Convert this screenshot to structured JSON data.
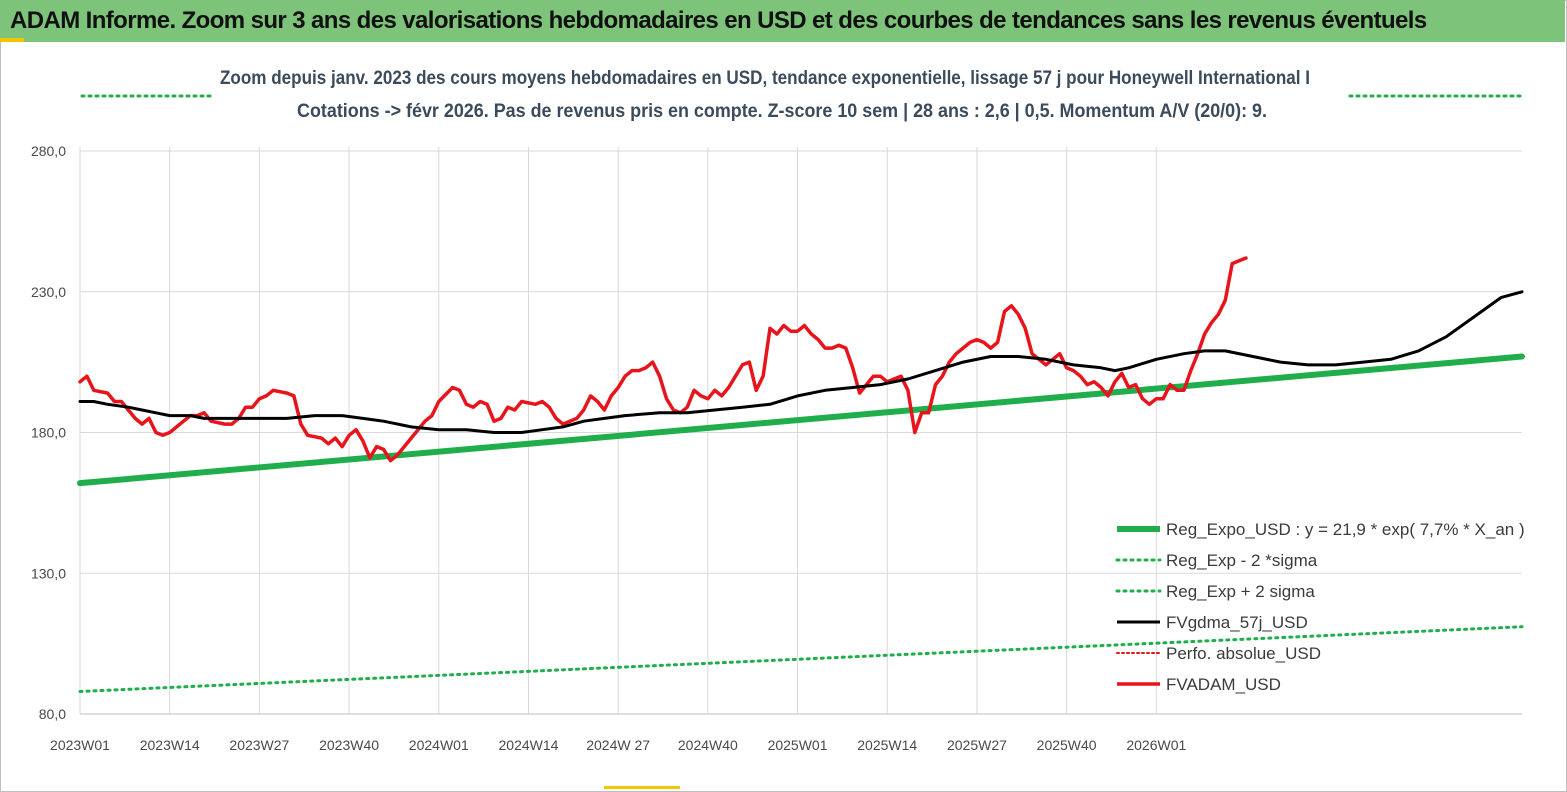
{
  "banner": {
    "title": "ADAM Informe. Zoom sur 3 ans des valorisations hebdomadaires en USD et des courbes de tendances sans les revenus éventuels"
  },
  "colors": {
    "banner_bg": "#7dc47a",
    "accent": "#f2c500",
    "reg_expo": "#1fae4b",
    "fvgdma": "#000000",
    "fvadam": "#e8141b",
    "perfo": "#e8141b"
  },
  "chart_data": {
    "type": "line",
    "title_line1": "Zoom depuis janv. 2023 des cours moyens hebdomadaires en USD, tendance exponentielle, lissage 57 j pour Honeywell International I",
    "title_line2": "Cotations -> févr 2026. Pas de revenus pris en compte. Z-score 10 sem | 28 ans : 2,6 | 0,5. Momentum A/V (20/0): 9.",
    "ylim": [
      80,
      280
    ],
    "yticks": [
      "280,0",
      "230,0",
      "180,0",
      "130,0",
      "80,0"
    ],
    "ytick_values": [
      280,
      230,
      180,
      130,
      80
    ],
    "xticks": [
      "2023W01",
      "2023W14",
      "2023W27",
      "2023W40",
      "2024W01",
      "2024W14",
      "2024W 27",
      "2024W40",
      "2025W01",
      "2025W14",
      "2025W27",
      "2025W40",
      "2026W01"
    ],
    "xlim_weeks": [
      0,
      165
    ],
    "grid": true,
    "legend_position": "bottom-right",
    "series": [
      {
        "name": "Reg_Expo_USD : y = 21,9 * exp( 7,7% *  X_an )",
        "style": "solid-thick",
        "start": [
          0,
          162
        ],
        "end": [
          165,
          207
        ]
      },
      {
        "name": "Reg_Exp - 2 *sigma",
        "style": "dotted",
        "start": [
          0,
          88
        ],
        "end": [
          165,
          111
        ]
      },
      {
        "name": "Reg_Exp + 2 sigma",
        "style": "dotted",
        "start": [
          0,
          301
        ],
        "end": [
          165,
          301
        ],
        "note_offscale": true
      },
      {
        "name": "FVgdma_57j_USD",
        "style": "solid",
        "points": [
          [
            0,
            191
          ],
          [
            2,
            191
          ],
          [
            4,
            190
          ],
          [
            7,
            189
          ],
          [
            9,
            188
          ],
          [
            11,
            187
          ],
          [
            13,
            186
          ],
          [
            16,
            186
          ],
          [
            18,
            185
          ],
          [
            22,
            185
          ],
          [
            26,
            185
          ],
          [
            30,
            185
          ],
          [
            34,
            186
          ],
          [
            38,
            186
          ],
          [
            41,
            185
          ],
          [
            44,
            184
          ],
          [
            48,
            182
          ],
          [
            52,
            181
          ],
          [
            56,
            181
          ],
          [
            60,
            180
          ],
          [
            64,
            180
          ],
          [
            67,
            181
          ],
          [
            70,
            182
          ],
          [
            73,
            184
          ],
          [
            76,
            185
          ],
          [
            79,
            186
          ],
          [
            84,
            187
          ],
          [
            88,
            187
          ],
          [
            92,
            188
          ],
          [
            96,
            189
          ],
          [
            100,
            190
          ],
          [
            104,
            193
          ],
          [
            108,
            195
          ],
          [
            112,
            196
          ],
          [
            116,
            197
          ],
          [
            120,
            199
          ],
          [
            124,
            202
          ],
          [
            128,
            205
          ],
          [
            132,
            207
          ],
          [
            136,
            207
          ],
          [
            140,
            206
          ],
          [
            144,
            204
          ],
          [
            148,
            203
          ],
          [
            150,
            202
          ],
          [
            152,
            203
          ],
          [
            156,
            206
          ],
          [
            160,
            208
          ],
          [
            163,
            209
          ],
          [
            166,
            209
          ],
          [
            170,
            207
          ],
          [
            174,
            205
          ],
          [
            178,
            204
          ],
          [
            182,
            204
          ],
          [
            186,
            205
          ],
          [
            190,
            206
          ],
          [
            194,
            209
          ],
          [
            198,
            214
          ],
          [
            202,
            221
          ],
          [
            206,
            228
          ],
          [
            209,
            230
          ]
        ]
      },
      {
        "name": "Perfo. absolue_USD",
        "style": "dotted",
        "offscale": true
      },
      {
        "name": "FVADAM_USD",
        "style": "solid-thick",
        "points": [
          [
            0,
            198
          ],
          [
            1,
            200
          ],
          [
            2,
            195
          ],
          [
            4,
            194
          ],
          [
            5,
            191
          ],
          [
            6,
            191
          ],
          [
            7,
            188
          ],
          [
            8,
            185
          ],
          [
            9,
            183
          ],
          [
            10,
            185
          ],
          [
            11,
            180
          ],
          [
            12,
            179
          ],
          [
            13,
            180
          ],
          [
            14,
            182
          ],
          [
            15,
            184
          ],
          [
            16,
            186
          ],
          [
            17,
            186
          ],
          [
            18,
            187
          ],
          [
            19,
            184
          ],
          [
            21,
            183
          ],
          [
            22,
            183
          ],
          [
            23,
            185
          ],
          [
            24,
            189
          ],
          [
            25,
            189
          ],
          [
            26,
            192
          ],
          [
            27,
            193
          ],
          [
            28,
            195
          ],
          [
            30,
            194
          ],
          [
            31,
            193
          ],
          [
            32,
            183
          ],
          [
            33,
            179
          ],
          [
            35,
            178
          ],
          [
            36,
            176
          ],
          [
            37,
            178
          ],
          [
            38,
            175
          ],
          [
            39,
            179
          ],
          [
            40,
            181
          ],
          [
            41,
            177
          ],
          [
            42,
            171
          ],
          [
            43,
            175
          ],
          [
            44,
            174
          ],
          [
            45,
            170
          ],
          [
            46,
            172
          ],
          [
            47,
            175
          ],
          [
            48,
            178
          ],
          [
            49,
            181
          ],
          [
            50,
            184
          ],
          [
            51,
            186
          ],
          [
            52,
            191
          ],
          [
            54,
            196
          ],
          [
            55,
            195
          ],
          [
            56,
            190
          ],
          [
            57,
            189
          ],
          [
            58,
            191
          ],
          [
            59,
            190
          ],
          [
            60,
            184
          ],
          [
            61,
            185
          ],
          [
            62,
            189
          ],
          [
            63,
            188
          ],
          [
            64,
            191
          ],
          [
            66,
            190
          ],
          [
            67,
            191
          ],
          [
            68,
            189
          ],
          [
            69,
            185
          ],
          [
            70,
            183
          ],
          [
            71,
            184
          ],
          [
            72,
            185
          ],
          [
            73,
            188
          ],
          [
            74,
            193
          ],
          [
            75,
            191
          ],
          [
            76,
            188
          ],
          [
            77,
            193
          ],
          [
            78,
            196
          ],
          [
            79,
            200
          ],
          [
            80,
            202
          ],
          [
            81,
            202
          ],
          [
            82,
            203
          ],
          [
            83,
            205
          ],
          [
            84,
            200
          ],
          [
            85,
            192
          ],
          [
            86,
            188
          ],
          [
            87,
            187
          ],
          [
            88,
            189
          ],
          [
            89,
            195
          ],
          [
            90,
            193
          ],
          [
            91,
            192
          ],
          [
            92,
            195
          ],
          [
            93,
            193
          ],
          [
            94,
            196
          ],
          [
            95,
            200
          ],
          [
            96,
            204
          ],
          [
            97,
            205
          ],
          [
            98,
            195
          ],
          [
            99,
            200
          ],
          [
            100,
            217
          ],
          [
            101,
            215
          ],
          [
            102,
            218
          ],
          [
            103,
            216
          ],
          [
            104,
            216
          ],
          [
            105,
            218
          ],
          [
            106,
            215
          ],
          [
            107,
            213
          ],
          [
            108,
            210
          ],
          [
            109,
            210
          ],
          [
            110,
            211
          ],
          [
            111,
            210
          ],
          [
            112,
            203
          ],
          [
            113,
            194
          ],
          [
            114,
            197
          ],
          [
            115,
            200
          ],
          [
            116,
            200
          ],
          [
            117,
            198
          ],
          [
            118,
            199
          ],
          [
            119,
            200
          ],
          [
            120,
            195
          ],
          [
            121,
            180
          ],
          [
            122,
            187
          ],
          [
            123,
            187
          ],
          [
            124,
            197
          ],
          [
            125,
            200
          ],
          [
            126,
            205
          ],
          [
            127,
            208
          ],
          [
            128,
            210
          ],
          [
            129,
            212
          ],
          [
            130,
            213
          ],
          [
            131,
            212
          ],
          [
            132,
            210
          ],
          [
            133,
            212
          ],
          [
            134,
            223
          ],
          [
            135,
            225
          ],
          [
            136,
            222
          ],
          [
            137,
            217
          ],
          [
            138,
            208
          ],
          [
            139,
            206
          ],
          [
            140,
            204
          ],
          [
            141,
            206
          ],
          [
            142,
            208
          ],
          [
            143,
            203
          ],
          [
            144,
            202
          ],
          [
            145,
            200
          ],
          [
            146,
            197
          ],
          [
            147,
            198
          ],
          [
            148,
            196
          ],
          [
            149,
            193
          ],
          [
            150,
            198
          ],
          [
            151,
            201
          ],
          [
            152,
            196
          ],
          [
            153,
            197
          ],
          [
            154,
            192
          ],
          [
            155,
            190
          ],
          [
            156,
            192
          ],
          [
            157,
            192
          ],
          [
            158,
            197
          ],
          [
            159,
            195
          ],
          [
            160,
            195
          ],
          [
            161,
            202
          ],
          [
            162,
            208
          ],
          [
            163,
            215
          ],
          [
            164,
            219
          ],
          [
            165,
            222
          ],
          [
            166,
            227
          ],
          [
            167,
            240
          ],
          [
            168,
            241
          ],
          [
            169,
            242
          ]
        ]
      }
    ]
  }
}
